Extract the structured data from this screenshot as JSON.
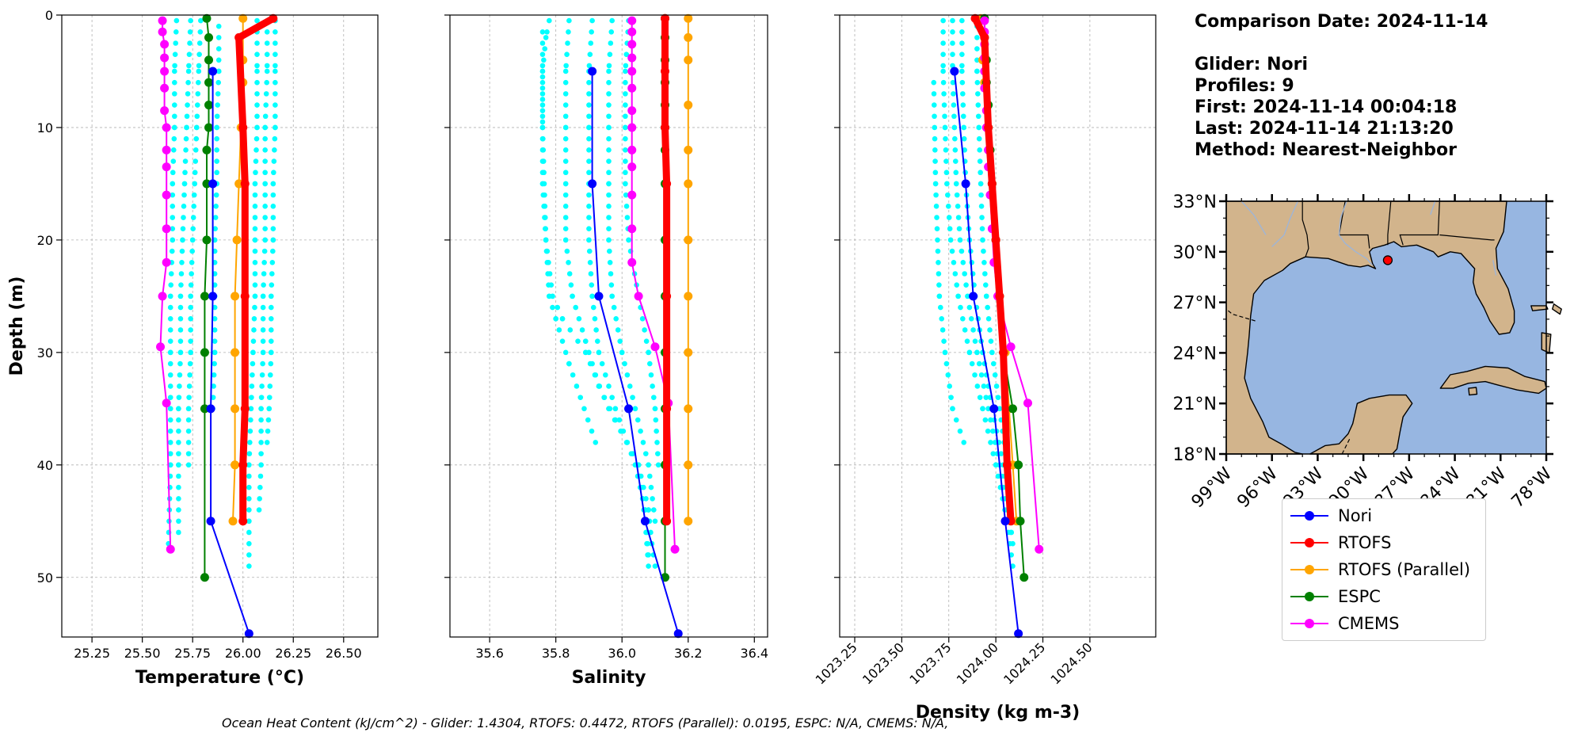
{
  "info": {
    "comparison_date": "Comparison Date: 2024-11-14",
    "glider": "Glider: Nori",
    "profiles": "Profiles: 9",
    "first": "First: 2024-11-14 00:04:18",
    "last": "Last: 2024-11-14 21:13:20",
    "method": "Method: Nearest-Neighbor"
  },
  "footer": "Ocean Heat Content (kJ/cm^2) - Glider: 1.4304,  RTOFS: 0.4472,  RTOFS (Parallel): 0.0195,  ESPC: N/A,  CMEMS: N/A,",
  "legend": [
    {
      "name": "Nori",
      "color": "#0000ff"
    },
    {
      "name": "RTOFS",
      "color": "#ff0000"
    },
    {
      "name": "RTOFS (Parallel)",
      "color": "#ffa500"
    },
    {
      "name": "ESPC",
      "color": "#008000"
    },
    {
      "name": "CMEMS",
      "color": "#ff00ff"
    }
  ],
  "colors": {
    "glider_profiles": "#00ffff",
    "land": "#d2b48c",
    "water": "#97b6e1",
    "gridline": "#b0b0b0"
  },
  "chart_data": [
    {
      "type": "line",
      "xlabel": "Temperature (°C)",
      "ylabel": "Depth (m)",
      "xlim": [
        25.1,
        26.67
      ],
      "ylim": [
        55.3,
        0
      ],
      "xticks": [
        25.25,
        25.5,
        25.75,
        26.0,
        26.25,
        26.5
      ],
      "xtick_labels": [
        "25.25",
        "25.50",
        "25.75",
        "26.00",
        "26.25",
        "26.50"
      ],
      "yticks": [
        0,
        10,
        20,
        30,
        40,
        50
      ],
      "grid": true,
      "glider_profiles": [
        {
          "x": [
            25.67,
            25.66,
            25.66,
            25.65,
            25.65,
            25.64,
            25.64,
            25.64,
            25.64,
            25.63
          ],
          "y": [
            0.5,
            5,
            10,
            15,
            20,
            25,
            30,
            35,
            40,
            47
          ]
        },
        {
          "x": [
            25.74,
            25.73,
            25.72,
            25.71,
            25.7,
            25.69,
            25.69,
            25.68,
            25.68,
            25.68
          ],
          "y": [
            0.5,
            5,
            10,
            15,
            20,
            25,
            30,
            35,
            40,
            46
          ]
        },
        {
          "x": [
            25.79,
            25.78,
            25.77,
            25.76,
            25.75,
            25.74,
            25.74,
            25.73,
            25.73
          ],
          "y": [
            0.5,
            5,
            10,
            15,
            20,
            25,
            30,
            35,
            40
          ]
        },
        {
          "x": [
            25.88,
            25.88,
            25.87,
            25.87,
            25.86,
            25.86,
            25.86,
            25.85
          ],
          "y": [
            1,
            5,
            10,
            15,
            20,
            25,
            30,
            35
          ]
        },
        {
          "x": [
            26.07,
            26.07,
            26.07,
            26.06,
            26.06,
            26.06,
            26.05,
            26.04,
            26.03,
            26.03,
            26.03
          ],
          "y": [
            0.5,
            5,
            10,
            15,
            20,
            25,
            30,
            35,
            40,
            45,
            49
          ]
        },
        {
          "x": [
            26.12,
            26.12,
            26.11,
            26.11,
            26.11,
            26.1,
            26.1,
            26.09,
            26.09,
            26.08
          ],
          "y": [
            0.5,
            5,
            10,
            15,
            20,
            25,
            30,
            35,
            40,
            44
          ]
        },
        {
          "x": [
            26.16,
            26.16,
            26.16,
            26.15,
            26.15,
            26.14,
            26.14,
            26.13,
            26.12
          ],
          "y": [
            0.5,
            5,
            10,
            15,
            20,
            25,
            30,
            35,
            38
          ]
        }
      ],
      "series": [
        {
          "name": "Nori",
          "x": [
            25.85,
            25.85,
            25.85,
            25.84,
            25.84,
            26.03
          ],
          "y": [
            5,
            15,
            25,
            35,
            45,
            55
          ]
        },
        {
          "name": "RTOFS",
          "x": [
            26.15,
            25.98,
            26.0,
            26.01,
            26.01,
            26.01,
            26.0,
            26.0
          ],
          "y": [
            0.3,
            2,
            10,
            15,
            25,
            35,
            40,
            45
          ]
        },
        {
          "name": "RTOFS (Parallel)",
          "x": [
            26.0,
            26.0,
            26.0,
            25.99,
            25.98,
            25.97,
            25.96,
            25.96,
            25.96,
            25.96,
            25.95
          ],
          "y": [
            0.3,
            4,
            6,
            10,
            15,
            20,
            25,
            30,
            35,
            40,
            45
          ]
        },
        {
          "name": "ESPC",
          "x": [
            25.82,
            25.83,
            25.83,
            25.83,
            25.83,
            25.83,
            25.82,
            25.82,
            25.82,
            25.81,
            25.81,
            25.81,
            25.81
          ],
          "y": [
            0.3,
            2,
            4,
            6,
            8,
            10,
            12,
            15,
            20,
            25,
            30,
            35,
            50
          ]
        },
        {
          "name": "CMEMS",
          "x": [
            25.6,
            25.6,
            25.61,
            25.61,
            25.61,
            25.61,
            25.61,
            25.62,
            25.62,
            25.62,
            25.62,
            25.62,
            25.62,
            25.6,
            25.59,
            25.62,
            25.64
          ],
          "y": [
            0.5,
            1.5,
            2.6,
            3.8,
            5,
            6.5,
            8.5,
            10,
            12,
            13.5,
            16,
            19,
            22,
            25,
            29.5,
            34.5,
            47.5
          ]
        }
      ]
    },
    {
      "type": "line",
      "xlabel": "Salinity",
      "xlim": [
        35.48,
        36.44
      ],
      "ylim": [
        55.3,
        0
      ],
      "xticks": [
        35.6,
        35.8,
        36.0,
        36.2,
        36.4
      ],
      "xtick_labels": [
        "35.6",
        "35.8",
        "36.0",
        "36.2",
        "36.4"
      ],
      "yticks": [
        0,
        10,
        20,
        30,
        40,
        50
      ],
      "grid": true,
      "glider_profiles": [
        {
          "x": [
            35.78,
            35.77,
            35.76,
            35.76,
            35.76,
            35.77,
            35.79,
            35.82,
            35.89,
            35.96,
            36.05,
            36.07,
            36.08
          ],
          "y": [
            0.5,
            2,
            5,
            10,
            15,
            20,
            25,
            27,
            30,
            35,
            40,
            45,
            49
          ]
        },
        {
          "x": [
            35.84,
            35.83,
            35.83,
            35.83,
            35.83,
            35.85,
            35.89,
            35.93,
            35.98,
            36.05,
            36.08,
            36.09,
            36.1
          ],
          "y": [
            0.5,
            5,
            10,
            15,
            20,
            25,
            29,
            33,
            36,
            40,
            44,
            47,
            49
          ]
        },
        {
          "x": [
            35.91,
            35.9,
            35.9,
            35.9,
            35.9,
            35.91,
            35.93,
            35.98,
            36.04,
            36.07,
            36.08
          ],
          "y": [
            0.5,
            5,
            10,
            15,
            20,
            25,
            30,
            35,
            40,
            44,
            48
          ]
        },
        {
          "x": [
            35.97,
            35.96,
            35.96,
            35.96,
            35.96,
            35.97,
            36.0,
            36.04,
            36.08,
            36.1
          ],
          "y": [
            0.5,
            5,
            10,
            15,
            20,
            25,
            30,
            35,
            40,
            45
          ]
        },
        {
          "x": [
            35.76,
            35.76,
            35.77,
            35.78,
            35.8,
            35.84,
            35.92
          ],
          "y": [
            1.5,
            10,
            20,
            25,
            27,
            31,
            38
          ]
        },
        {
          "x": [
            36.02,
            36.01,
            36.01,
            36.01,
            36.02,
            36.05,
            36.08,
            36.1,
            36.11
          ],
          "y": [
            0.5,
            5,
            10,
            15,
            20,
            25,
            30,
            35,
            40
          ]
        }
      ],
      "series": [
        {
          "name": "Nori",
          "x": [
            35.91,
            35.91,
            35.93,
            36.02,
            36.07,
            36.17
          ],
          "y": [
            5,
            15,
            25,
            35,
            45,
            55
          ]
        },
        {
          "name": "RTOFS",
          "x": [
            36.13,
            36.13,
            36.13,
            36.135,
            36.135,
            36.135,
            36.135
          ],
          "y": [
            0.3,
            5,
            10,
            15,
            25,
            35,
            45
          ]
        },
        {
          "name": "RTOFS (Parallel)",
          "x": [
            36.2,
            36.2,
            36.2,
            36.2,
            36.2,
            36.2,
            36.2,
            36.2,
            36.2,
            36.2,
            36.2,
            36.2
          ],
          "y": [
            0.3,
            2,
            4,
            8,
            12,
            15,
            20,
            25,
            30,
            35,
            40,
            45
          ]
        },
        {
          "name": "ESPC",
          "x": [
            36.13,
            36.13,
            36.13,
            36.13,
            36.13,
            36.13,
            36.13,
            36.13,
            36.13,
            36.13,
            36.13,
            36.13,
            36.13,
            36.13,
            36.13
          ],
          "y": [
            0.3,
            2,
            4,
            6,
            8,
            10,
            12,
            15,
            20,
            25,
            30,
            35,
            40,
            45,
            50
          ]
        },
        {
          "name": "CMEMS",
          "x": [
            36.03,
            36.03,
            36.03,
            36.03,
            36.03,
            36.03,
            36.03,
            36.03,
            36.03,
            36.03,
            36.03,
            36.03,
            36.03,
            36.05,
            36.1,
            36.14,
            36.16
          ],
          "y": [
            0.5,
            1.5,
            2.6,
            3.8,
            5,
            6.5,
            8.5,
            10,
            12,
            13.5,
            16,
            19,
            22,
            25,
            29.5,
            34.5,
            47.5
          ]
        }
      ]
    },
    {
      "type": "line",
      "xlabel": "Density (kg m-3)",
      "xlim": [
        1023.17,
        1024.85
      ],
      "ylim": [
        55.3,
        0
      ],
      "xticks": [
        1023.25,
        1023.5,
        1023.75,
        1024.0,
        1024.25,
        1024.5
      ],
      "xtick_labels": [
        "1023.25",
        "1023.50",
        "1023.75",
        "1024.00",
        "1024.25",
        "1024.50"
      ],
      "yticks": [
        0,
        10,
        20,
        30,
        40,
        50
      ],
      "grid": true,
      "glider_profiles": [
        {
          "x": [
            1023.72,
            1023.72,
            1023.73,
            1023.74,
            1023.76,
            1023.8,
            1023.86,
            1023.93,
            1024.0,
            1024.06,
            1024.09
          ],
          "y": [
            0.5,
            5,
            10,
            15,
            20,
            25,
            30,
            35,
            40,
            45,
            49
          ]
        },
        {
          "x": [
            1023.77,
            1023.77,
            1023.78,
            1023.79,
            1023.81,
            1023.85,
            1023.9,
            1023.96,
            1024.02,
            1024.08
          ],
          "y": [
            0.5,
            5,
            10,
            15,
            20,
            25,
            30,
            35,
            40,
            46
          ]
        },
        {
          "x": [
            1023.82,
            1023.82,
            1023.83,
            1023.84,
            1023.86,
            1023.89,
            1023.93,
            1023.98,
            1024.04,
            1024.09
          ],
          "y": [
            0.5,
            5,
            10,
            15,
            20,
            25,
            30,
            35,
            40,
            47
          ]
        },
        {
          "x": [
            1023.9,
            1023.9,
            1023.91,
            1023.92,
            1023.93,
            1023.95,
            1023.98,
            1024.02,
            1024.06
          ],
          "y": [
            1,
            5,
            10,
            15,
            20,
            25,
            30,
            35,
            40
          ]
        },
        {
          "x": [
            1023.67,
            1023.68,
            1023.7,
            1023.73,
            1023.77,
            1023.83
          ],
          "y": [
            6,
            15,
            25,
            30,
            35,
            38
          ]
        }
      ],
      "series": [
        {
          "name": "Nori",
          "x": [
            1023.78,
            1023.84,
            1023.88,
            1023.99,
            1024.05,
            1024.12
          ],
          "y": [
            5,
            15,
            25,
            35,
            45,
            55
          ]
        },
        {
          "name": "RTOFS",
          "x": [
            1023.89,
            1023.94,
            1023.96,
            1023.98,
            1024.0,
            1024.02,
            1024.04,
            1024.06,
            1024.08
          ],
          "y": [
            0.3,
            2,
            10,
            15,
            20,
            25,
            30,
            40,
            45
          ]
        },
        {
          "name": "RTOFS (Parallel)",
          "x": [
            1023.92,
            1023.93,
            1023.94,
            1023.96,
            1023.98,
            1024.0,
            1024.02,
            1024.05,
            1024.07,
            1024.09,
            1024.11
          ],
          "y": [
            0.3,
            4,
            6,
            10,
            15,
            20,
            25,
            30,
            35,
            40,
            45
          ]
        },
        {
          "name": "ESPC",
          "x": [
            1023.94,
            1023.94,
            1023.95,
            1023.95,
            1023.96,
            1023.96,
            1023.97,
            1023.98,
            1024.0,
            1024.02,
            1024.04,
            1024.09,
            1024.12,
            1024.13,
            1024.15
          ],
          "y": [
            0.3,
            2,
            4,
            6,
            8,
            10,
            12,
            15,
            20,
            25,
            30,
            35,
            40,
            45,
            50
          ]
        },
        {
          "name": "CMEMS",
          "x": [
            1023.94,
            1023.94,
            1023.94,
            1023.94,
            1023.94,
            1023.94,
            1023.95,
            1023.95,
            1023.96,
            1023.96,
            1023.97,
            1023.98,
            1023.99,
            1024.01,
            1024.08,
            1024.17,
            1024.23
          ],
          "y": [
            0.5,
            1.5,
            2.6,
            3.8,
            5,
            6.5,
            8.5,
            10,
            12,
            13.5,
            16,
            19,
            22,
            25,
            29.5,
            34.5,
            47.5
          ]
        }
      ]
    }
  ],
  "map": {
    "lon_ticks": [
      "99°W",
      "96°W",
      "93°W",
      "90°W",
      "87°W",
      "84°W",
      "81°W",
      "78°W"
    ],
    "lat_ticks": [
      "33°N",
      "30°N",
      "27°N",
      "24°N",
      "21°N",
      "18°N"
    ],
    "lon_range": [
      -99,
      -78
    ],
    "lat_range": [
      18,
      33
    ],
    "glider_position": {
      "lon": -88.4,
      "lat": 29.5
    }
  }
}
